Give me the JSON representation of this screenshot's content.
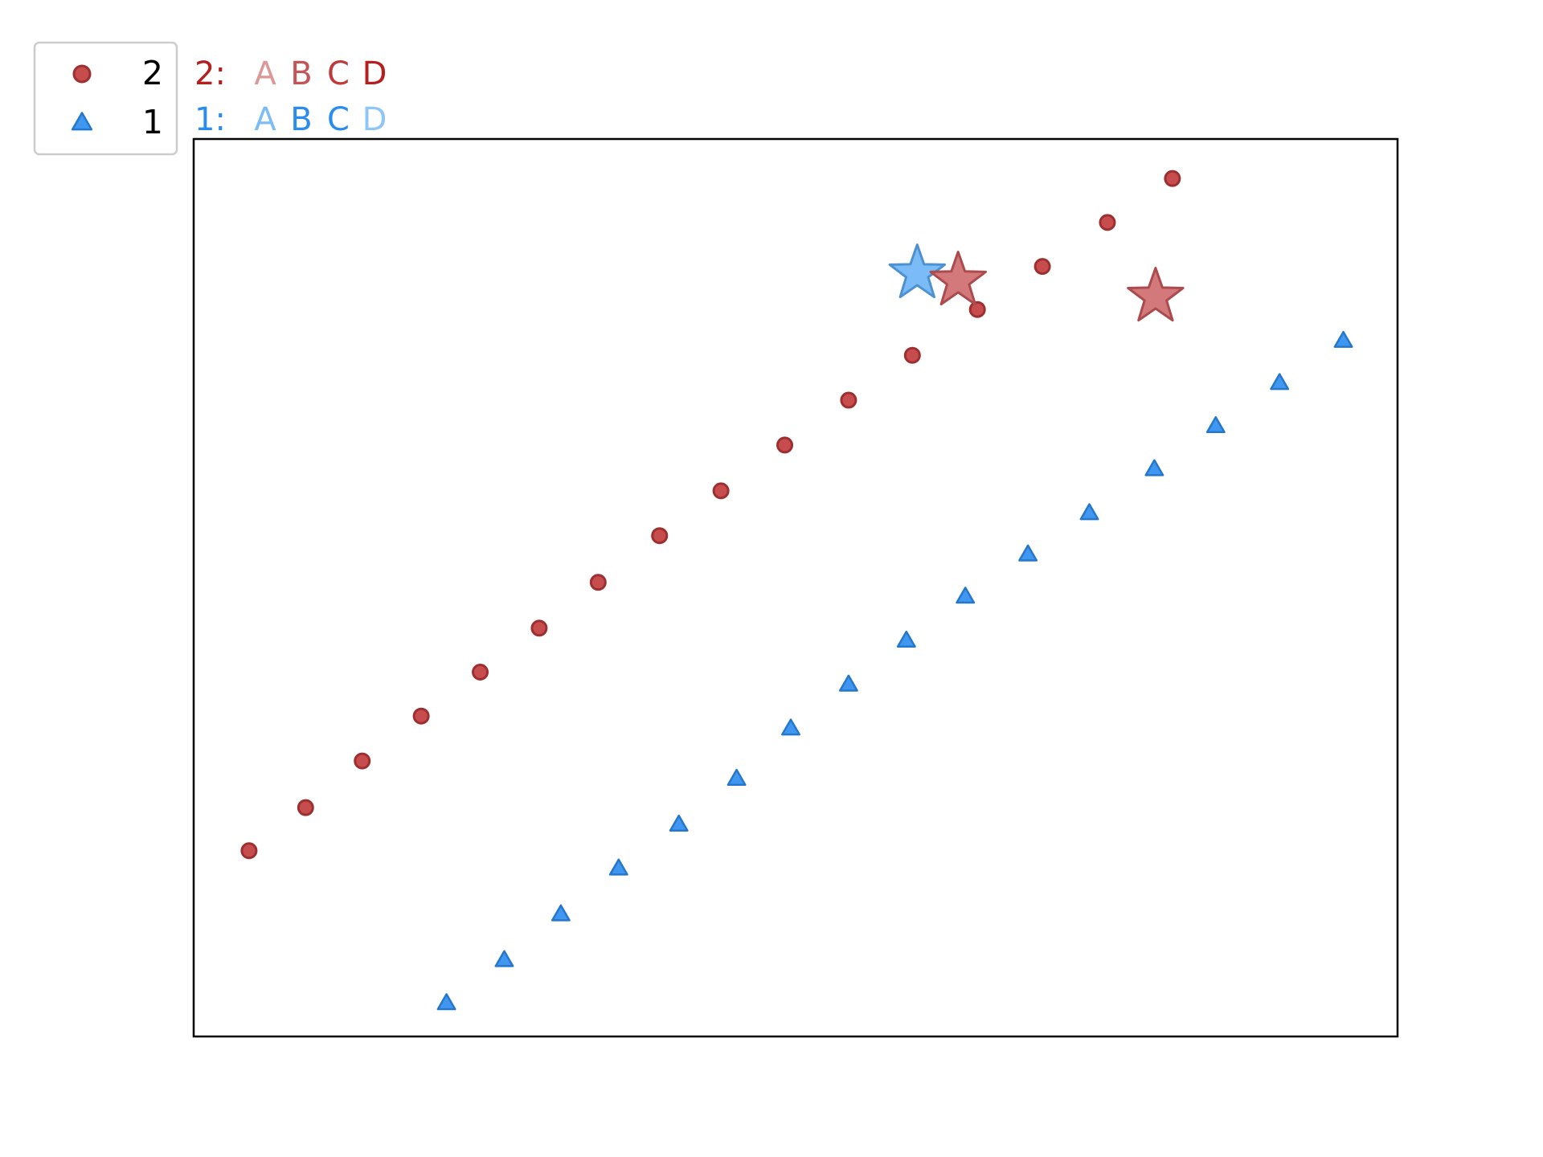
{
  "chart_data": {
    "type": "scatter",
    "title": "",
    "xlabel": "",
    "ylabel": "",
    "xlim": [
      0,
      100
    ],
    "ylim": [
      0,
      100
    ],
    "grid": false,
    "ticks": false,
    "legend": {
      "placement": "top-left",
      "entries": [
        {
          "name": "2",
          "marker": "circle",
          "color": "#c0393b"
        },
        {
          "name": "1",
          "marker": "triangle",
          "color": "#2b8cef"
        }
      ]
    },
    "series": [
      {
        "name": "2",
        "marker": "circle",
        "color": "#c0393b",
        "x": [
          4.6,
          9.3,
          14.0,
          18.9,
          23.8,
          28.7,
          33.6,
          38.7,
          43.8,
          49.1,
          54.4,
          59.7,
          65.1,
          70.5,
          75.9,
          81.3
        ],
        "y": [
          20.7,
          25.5,
          30.7,
          35.7,
          40.6,
          45.5,
          50.6,
          55.8,
          60.8,
          65.9,
          70.9,
          75.9,
          81.0,
          85.8,
          90.7,
          95.6
        ]
      },
      {
        "name": "1",
        "marker": "triangle",
        "color": "#2b8cef",
        "x": [
          21.0,
          25.8,
          30.5,
          35.3,
          40.3,
          45.1,
          49.6,
          54.4,
          59.2,
          64.1,
          69.3,
          74.4,
          79.8,
          84.9,
          90.2,
          95.5
        ],
        "y": [
          3.7,
          8.5,
          13.6,
          18.7,
          23.6,
          28.7,
          34.3,
          39.2,
          44.1,
          49.0,
          53.7,
          58.3,
          63.2,
          68.0,
          72.8,
          77.5
        ]
      }
    ],
    "highlights": [
      {
        "series": "1",
        "marker": "star",
        "color": "#5aaaf5",
        "x": 60.1,
        "y": 85.0
      },
      {
        "series": "2",
        "marker": "star",
        "color": "#c9585a",
        "x": 63.5,
        "y": 84.2
      },
      {
        "series": "2",
        "marker": "star",
        "color": "#c9585a",
        "x": 79.9,
        "y": 82.4
      }
    ],
    "annotations": [
      {
        "label": "2:",
        "color": "#b51d1f",
        "letters": [
          {
            "text": "A",
            "color": "#dc9797"
          },
          {
            "text": "B",
            "color": "#c45456"
          },
          {
            "text": "C",
            "color": "#c0393b"
          },
          {
            "text": "D",
            "color": "#b51d1f"
          }
        ]
      },
      {
        "label": "1:",
        "color": "#2b8cef",
        "letters": [
          {
            "text": "A",
            "color": "#7cbdf7"
          },
          {
            "text": "B",
            "color": "#2b8cef"
          },
          {
            "text": "C",
            "color": "#2b8cef"
          },
          {
            "text": "D",
            "color": "#8ec6f8"
          }
        ]
      }
    ]
  }
}
